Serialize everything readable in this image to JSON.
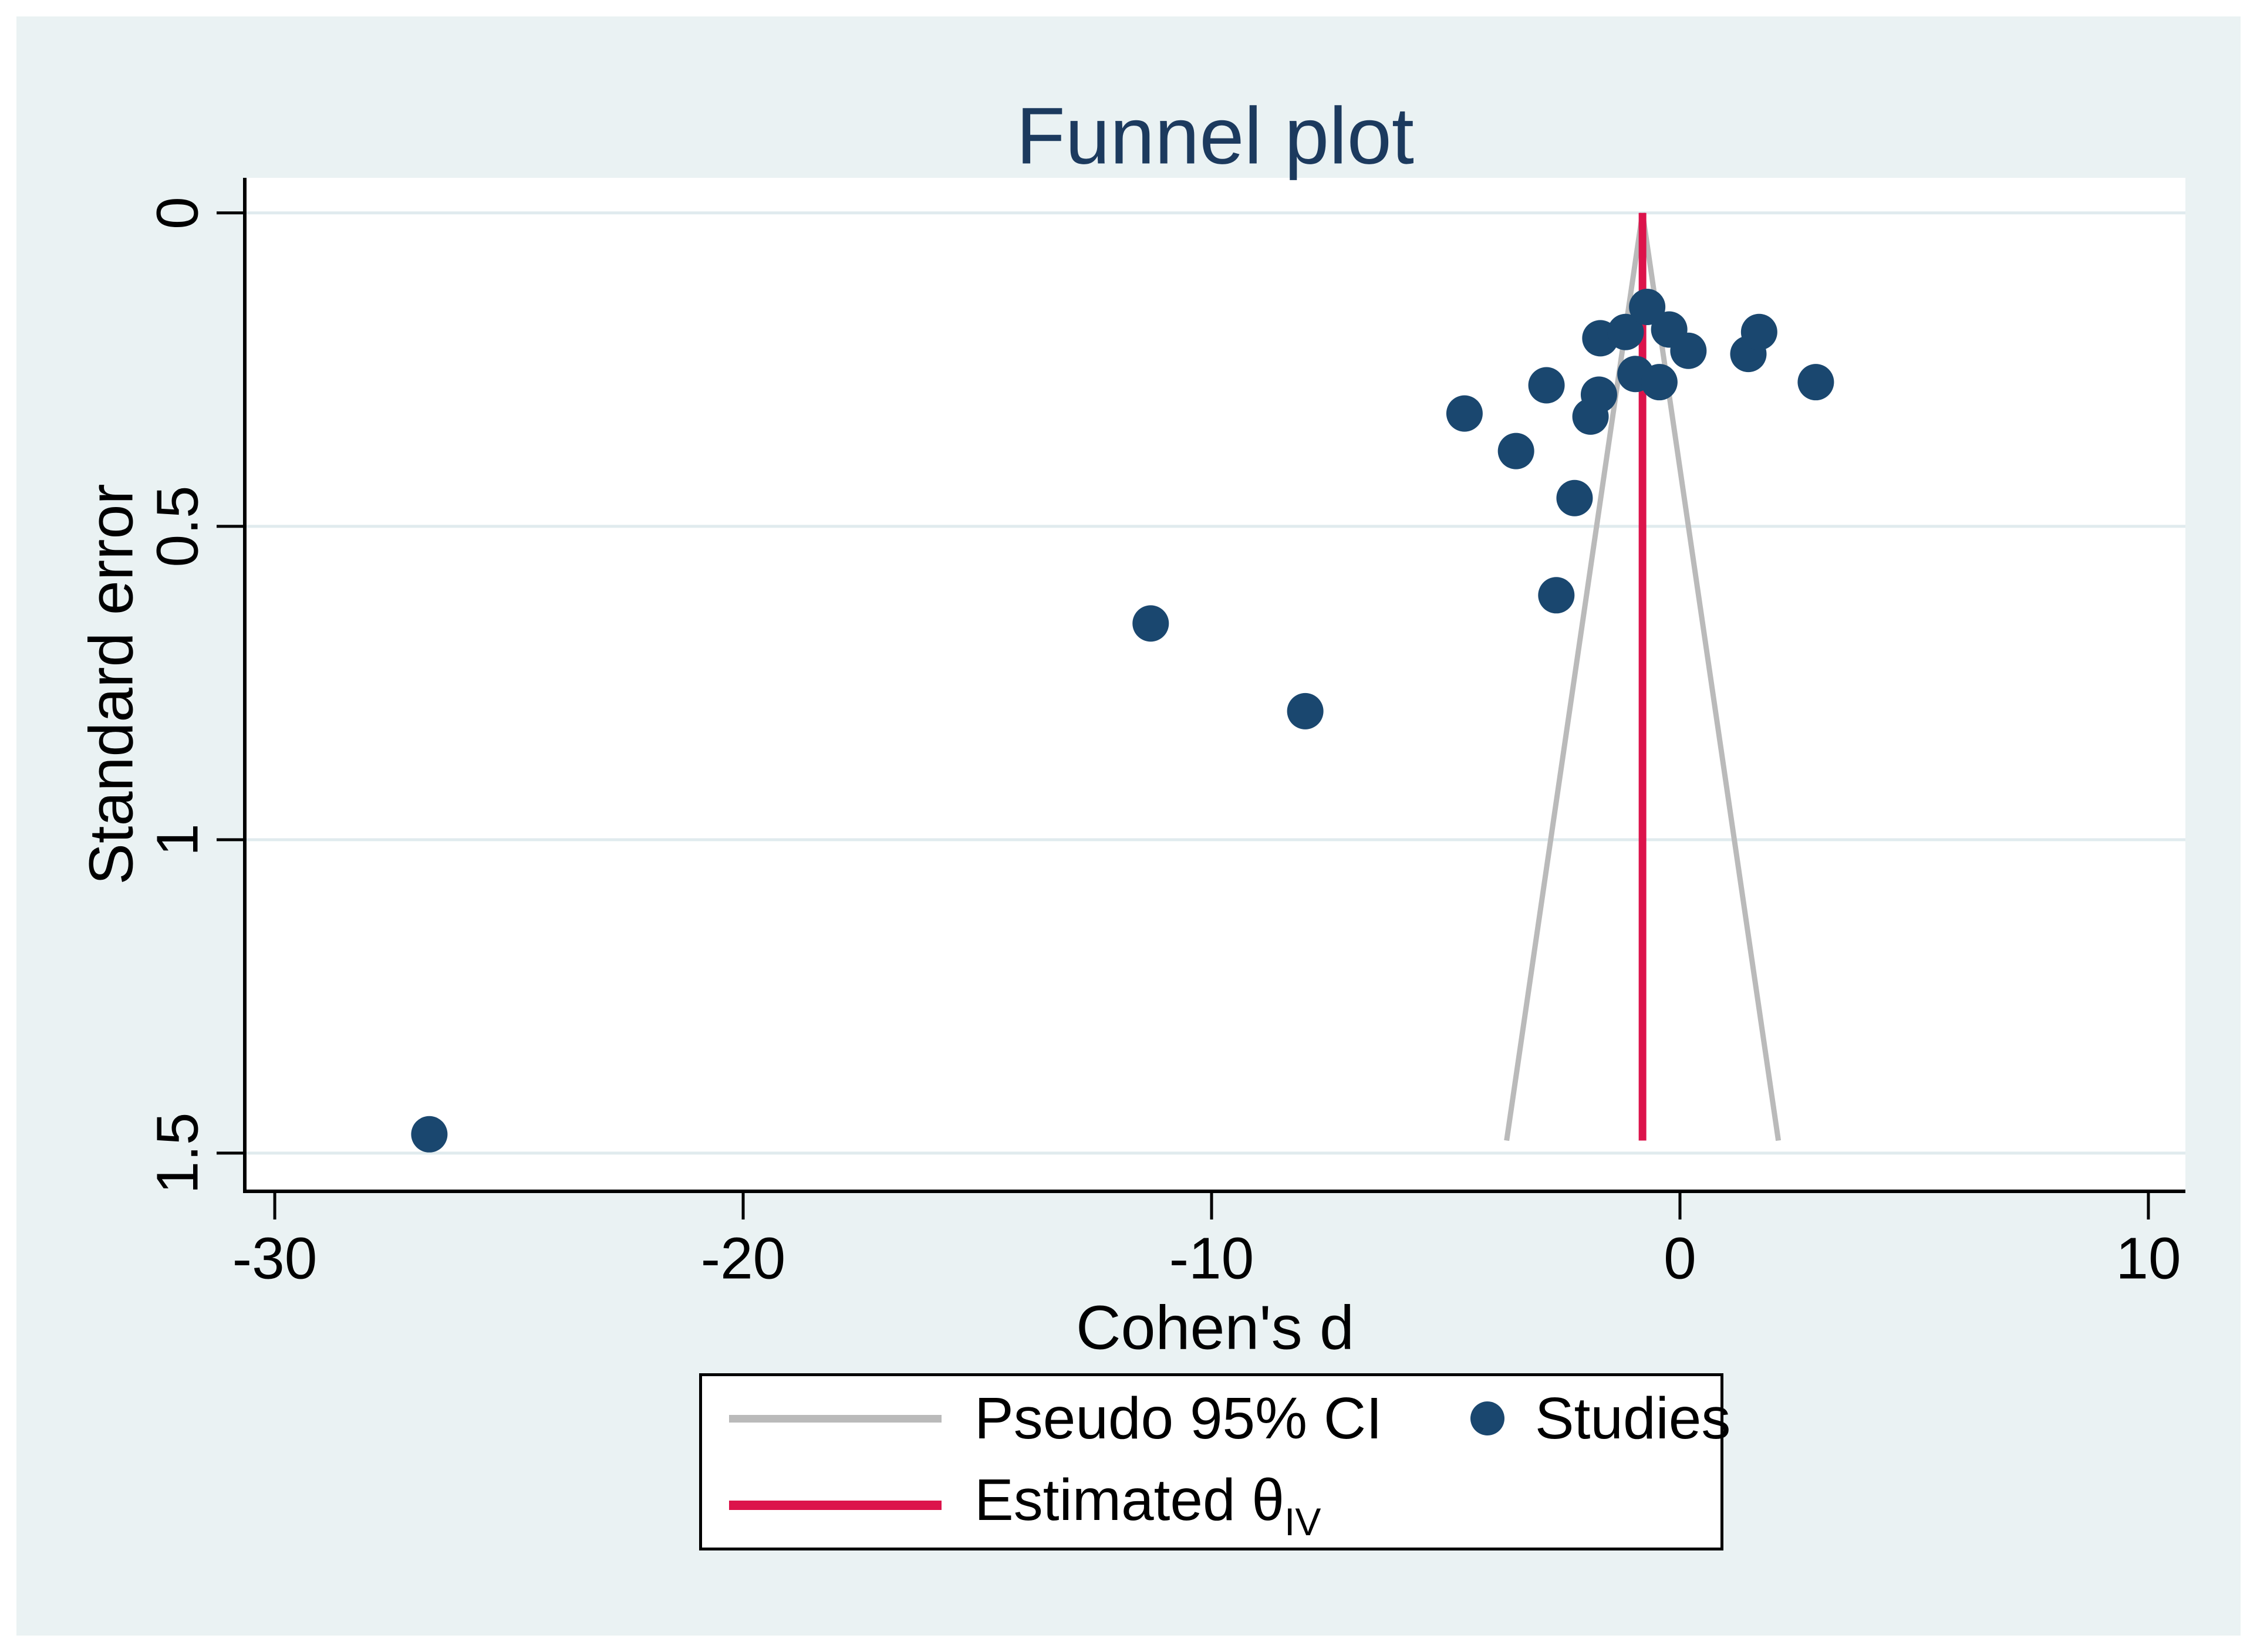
{
  "title": "Funnel plot",
  "x_axis": {
    "label": "Cohen's d"
  },
  "y_axis": {
    "label": "Standard error"
  },
  "legend": {
    "pseudo_ci_label": "Pseudo 95% CI",
    "studies_label": "Studies",
    "estimated_label": "Estimated θ",
    "estimated_sub": "IV"
  },
  "colors": {
    "panel_background": "#eaf2f3",
    "plot_background": "#ffffff",
    "gridline": "#e0ebee",
    "axis": "#000000",
    "title": "#1c3a5e",
    "study_dot": "#1a476f",
    "pseudo_ci_line": "#bababa",
    "estimated_line": "#dc134b"
  },
  "chart_data": {
    "type": "scatter",
    "title": "Funnel plot",
    "xlabel": "Cohen's d",
    "ylabel": "Standard error",
    "xlim": [
      -30.64,
      10.79
    ],
    "ylim": [
      -0.056,
      1.561
    ],
    "y_inverted": true,
    "grid": "horizontal",
    "legend_position": "bottom",
    "x_ticks": [
      {
        "v": -30,
        "label": "-30"
      },
      {
        "v": -20,
        "label": "-20"
      },
      {
        "v": -10,
        "label": "-10"
      },
      {
        "v": 0,
        "label": "0"
      },
      {
        "v": 10,
        "label": "10"
      }
    ],
    "y_ticks": [
      {
        "v": 0,
        "label": "0"
      },
      {
        "v": 0.5,
        "label": "0.5"
      },
      {
        "v": 1,
        "label": "1"
      },
      {
        "v": 1.5,
        "label": "1.5"
      }
    ],
    "funnel": {
      "center": -0.8,
      "z": 1.96,
      "se_max": 1.48
    },
    "series": [
      {
        "name": "Studies",
        "points": [
          {
            "x": -26.7,
            "se": 1.47
          },
          {
            "x": -11.3,
            "se": 0.655
          },
          {
            "x": -8.0,
            "se": 0.795
          },
          {
            "x": -4.6,
            "se": 0.32
          },
          {
            "x": -3.5,
            "se": 0.38
          },
          {
            "x": -2.85,
            "se": 0.275
          },
          {
            "x": -2.64,
            "se": 0.61
          },
          {
            "x": -2.25,
            "se": 0.455
          },
          {
            "x": -1.91,
            "se": 0.325
          },
          {
            "x": -1.73,
            "se": 0.29
          },
          {
            "x": -1.7,
            "se": 0.2
          },
          {
            "x": -1.16,
            "se": 0.19
          },
          {
            "x": -0.95,
            "se": 0.257
          },
          {
            "x": -0.7,
            "se": 0.15
          },
          {
            "x": -0.44,
            "se": 0.27
          },
          {
            "x": -0.23,
            "se": 0.186
          },
          {
            "x": 0.18,
            "se": 0.22
          },
          {
            "x": 1.46,
            "se": 0.225
          },
          {
            "x": 1.69,
            "se": 0.19
          },
          {
            "x": 2.9,
            "se": 0.27
          }
        ]
      }
    ]
  }
}
